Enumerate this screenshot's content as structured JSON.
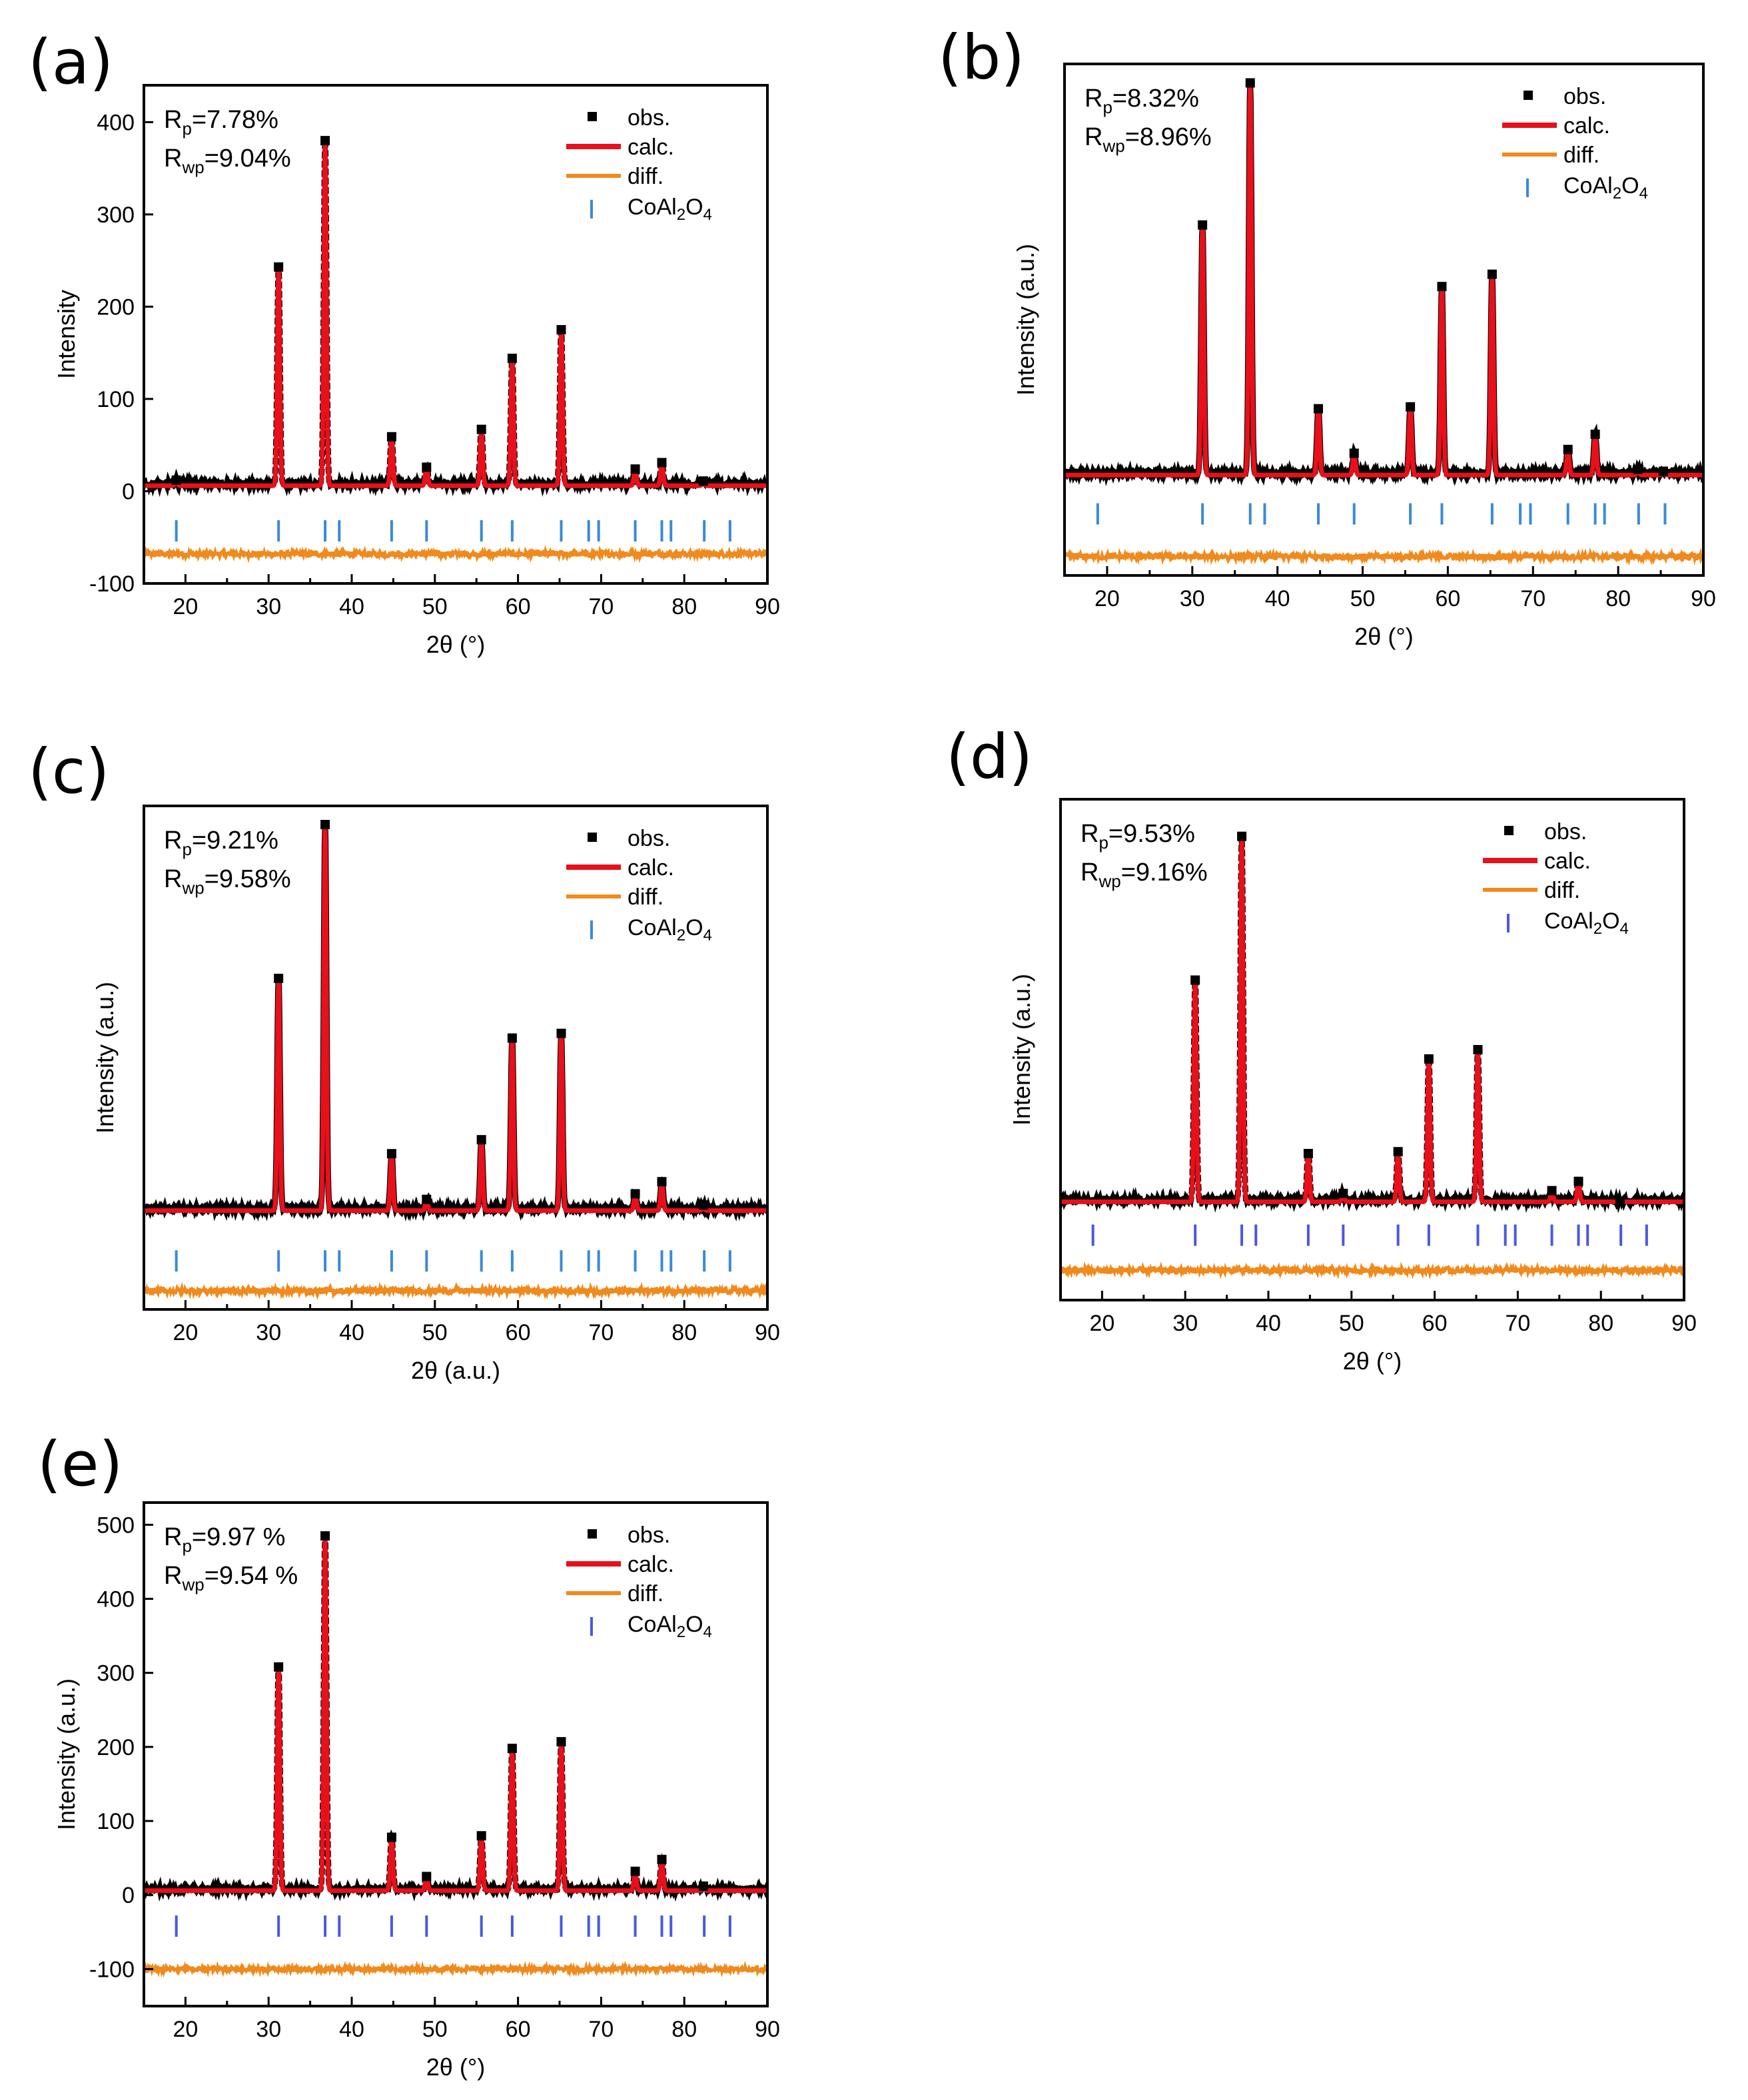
{
  "figure": {
    "description_hidden": ""
  },
  "chart_data": [
    {
      "type": "line",
      "panel_label": "(a)",
      "xlabel": "2θ (°)",
      "ylabel": "Intensity",
      "xlim": [
        15,
        90
      ],
      "ylim": [
        -100,
        440
      ],
      "xticks": [
        20,
        30,
        40,
        50,
        60,
        70,
        80,
        90
      ],
      "yticks": [
        -100,
        0,
        100,
        200,
        300,
        400
      ],
      "show_y_tick_labels": true,
      "rp": "=7.78%",
      "rwp": "=9.04%",
      "legend": {
        "obs": "obs.",
        "calc": "calc.",
        "diff": "diff.",
        "phase_pre": "CoAl",
        "phase_sub1": "2",
        "phase_mid": "O",
        "phase_sub2": "4",
        "position": "top-right"
      },
      "baseline": 8,
      "tick_row_y": -43,
      "diff_level": -68,
      "peaks": [
        {
          "x": 18.9,
          "y": 12
        },
        {
          "x": 31.2,
          "y": 243
        },
        {
          "x": 36.8,
          "y": 380
        },
        {
          "x": 44.8,
          "y": 59
        },
        {
          "x": 49.0,
          "y": 26
        },
        {
          "x": 55.6,
          "y": 67
        },
        {
          "x": 59.3,
          "y": 144
        },
        {
          "x": 65.2,
          "y": 175
        },
        {
          "x": 74.1,
          "y": 24
        },
        {
          "x": 77.3,
          "y": 31
        },
        {
          "x": 82.3,
          "y": 11
        }
      ],
      "reflections": [
        18.9,
        31.2,
        36.8,
        38.5,
        44.8,
        49.0,
        55.6,
        59.3,
        65.2,
        68.5,
        69.7,
        74.1,
        77.3,
        78.4,
        82.4,
        85.5
      ]
    },
    {
      "type": "line",
      "panel_label": "(b)",
      "xlabel": "2θ (°)",
      "ylabel": "Intensity (a.u.)",
      "xlim": [
        15,
        90
      ],
      "ylim": [
        -100,
        440
      ],
      "xticks": [
        20,
        30,
        40,
        50,
        60,
        70,
        80,
        90
      ],
      "yticks": [],
      "show_y_tick_labels": false,
      "rp": "=8.32%",
      "rwp": "=8.96%",
      "legend": {
        "obs": "obs.",
        "calc": "calc.",
        "diff": "diff.",
        "phase_pre": "CoAl",
        "phase_sub1": "2",
        "phase_mid": "O",
        "phase_sub2": "4",
        "position": "top-right"
      },
      "baseline": 8,
      "tick_row_y": -35,
      "diff_level": -80,
      "peaks": [
        {
          "x": 31.2,
          "y": 270
        },
        {
          "x": 36.8,
          "y": 420
        },
        {
          "x": 44.8,
          "y": 76
        },
        {
          "x": 49.0,
          "y": 29
        },
        {
          "x": 55.6,
          "y": 78
        },
        {
          "x": 59.3,
          "y": 205
        },
        {
          "x": 65.2,
          "y": 218
        },
        {
          "x": 74.1,
          "y": 33
        },
        {
          "x": 77.3,
          "y": 49
        },
        {
          "x": 82.3,
          "y": 12
        },
        {
          "x": 85.3,
          "y": 10
        }
      ],
      "reflections": [
        18.9,
        31.2,
        36.8,
        38.5,
        44.8,
        49.0,
        55.6,
        59.3,
        65.2,
        68.5,
        69.7,
        74.1,
        77.3,
        78.4,
        82.4,
        85.5
      ]
    },
    {
      "type": "line",
      "panel_label": "(c)",
      "xlabel": "2θ (a.u.)",
      "ylabel": "Intensity (a.u.)",
      "xlim": [
        15,
        90
      ],
      "ylim": [
        -100,
        440
      ],
      "xticks": [
        20,
        30,
        40,
        50,
        60,
        70,
        80,
        90
      ],
      "yticks": [],
      "show_y_tick_labels": false,
      "rp": "=9.21%",
      "rwp": "=9.58%",
      "legend": {
        "obs": "obs.",
        "calc": "calc.",
        "diff": "diff.",
        "phase_pre": "CoAl",
        "phase_sub1": "2",
        "phase_mid": "O",
        "phase_sub2": "4",
        "position": "top-right"
      },
      "baseline": 8,
      "tick_row_y": -48,
      "diff_level": -80,
      "peaks": [
        {
          "x": 31.2,
          "y": 255
        },
        {
          "x": 36.8,
          "y": 420
        },
        {
          "x": 44.8,
          "y": 67
        },
        {
          "x": 49.0,
          "y": 18
        },
        {
          "x": 55.6,
          "y": 82
        },
        {
          "x": 59.3,
          "y": 191
        },
        {
          "x": 65.2,
          "y": 196
        },
        {
          "x": 74.1,
          "y": 24
        },
        {
          "x": 77.3,
          "y": 37
        },
        {
          "x": 82.3,
          "y": 12
        }
      ],
      "reflections": [
        18.9,
        31.2,
        36.8,
        38.5,
        44.8,
        49.0,
        55.6,
        59.3,
        65.2,
        68.5,
        69.7,
        74.1,
        77.3,
        78.4,
        82.4,
        85.5
      ]
    },
    {
      "type": "line",
      "panel_label": "(d)",
      "xlabel": "2θ (°)",
      "ylabel": "Intensity (a.u.)",
      "xlim": [
        15,
        90
      ],
      "ylim": [
        -100,
        440
      ],
      "xticks": [
        20,
        30,
        40,
        50,
        60,
        70,
        80,
        90
      ],
      "yticks": [],
      "show_y_tick_labels": false,
      "rp": "=9.53%",
      "rwp": "=9.16%",
      "legend": {
        "obs": "obs.",
        "calc": "calc.",
        "diff": "diff.",
        "phase_pre": "CoAl",
        "phase_sub1": "2",
        "phase_mid": "O",
        "phase_sub2": "4",
        "position": "top-right"
      },
      "baseline": 8,
      "tick_row_y": -30,
      "diff_level": -68,
      "peaks": [
        {
          "x": 31.2,
          "y": 245
        },
        {
          "x": 36.8,
          "y": 400
        },
        {
          "x": 44.8,
          "y": 58
        },
        {
          "x": 49.0,
          "y": 15
        },
        {
          "x": 55.6,
          "y": 60
        },
        {
          "x": 59.3,
          "y": 160
        },
        {
          "x": 65.2,
          "y": 170
        },
        {
          "x": 74.1,
          "y": 18
        },
        {
          "x": 77.3,
          "y": 28
        },
        {
          "x": 82.3,
          "y": 6
        }
      ],
      "reflections": [
        18.9,
        31.2,
        36.8,
        38.5,
        44.8,
        49.0,
        55.6,
        59.3,
        65.2,
        68.5,
        69.7,
        74.1,
        77.3,
        78.4,
        82.4,
        85.5
      ]
    },
    {
      "type": "line",
      "panel_label": "(e)",
      "xlabel": "2θ (°)",
      "ylabel": "Intensity (a.u.)",
      "xlim": [
        15,
        90
      ],
      "ylim": [
        -150,
        530
      ],
      "xticks": [
        20,
        30,
        40,
        50,
        60,
        70,
        80,
        90
      ],
      "yticks": [
        -100,
        0,
        100,
        200,
        300,
        400,
        500
      ],
      "show_y_tick_labels": true,
      "rp": "=9.97 %",
      "rwp": "=9.54 %",
      "legend": {
        "obs": "obs.",
        "calc": "calc.",
        "diff": "diff.",
        "phase_pre": "CoAl",
        "phase_sub1": "2",
        "phase_mid": "O",
        "phase_sub2": "4",
        "position": "top-right"
      },
      "baseline": 8,
      "tick_row_y": -42,
      "diff_level": -100,
      "peaks": [
        {
          "x": 31.2,
          "y": 308
        },
        {
          "x": 36.8,
          "y": 485
        },
        {
          "x": 44.8,
          "y": 78
        },
        {
          "x": 49.0,
          "y": 25
        },
        {
          "x": 55.6,
          "y": 80
        },
        {
          "x": 59.3,
          "y": 198
        },
        {
          "x": 65.2,
          "y": 207
        },
        {
          "x": 74.1,
          "y": 32
        },
        {
          "x": 77.3,
          "y": 48
        },
        {
          "x": 82.3,
          "y": 12
        }
      ],
      "reflections": [
        18.9,
        31.2,
        36.8,
        38.5,
        44.8,
        49.0,
        55.6,
        59.3,
        65.2,
        68.5,
        69.7,
        74.1,
        77.3,
        78.4,
        82.4,
        85.5
      ]
    }
  ],
  "colors": {
    "obs": "#000000",
    "calc": "#e8101a",
    "diff": "#f08a1c",
    "ticks_a": "#3a8ad8",
    "ticks_d": "#4a58e0"
  }
}
